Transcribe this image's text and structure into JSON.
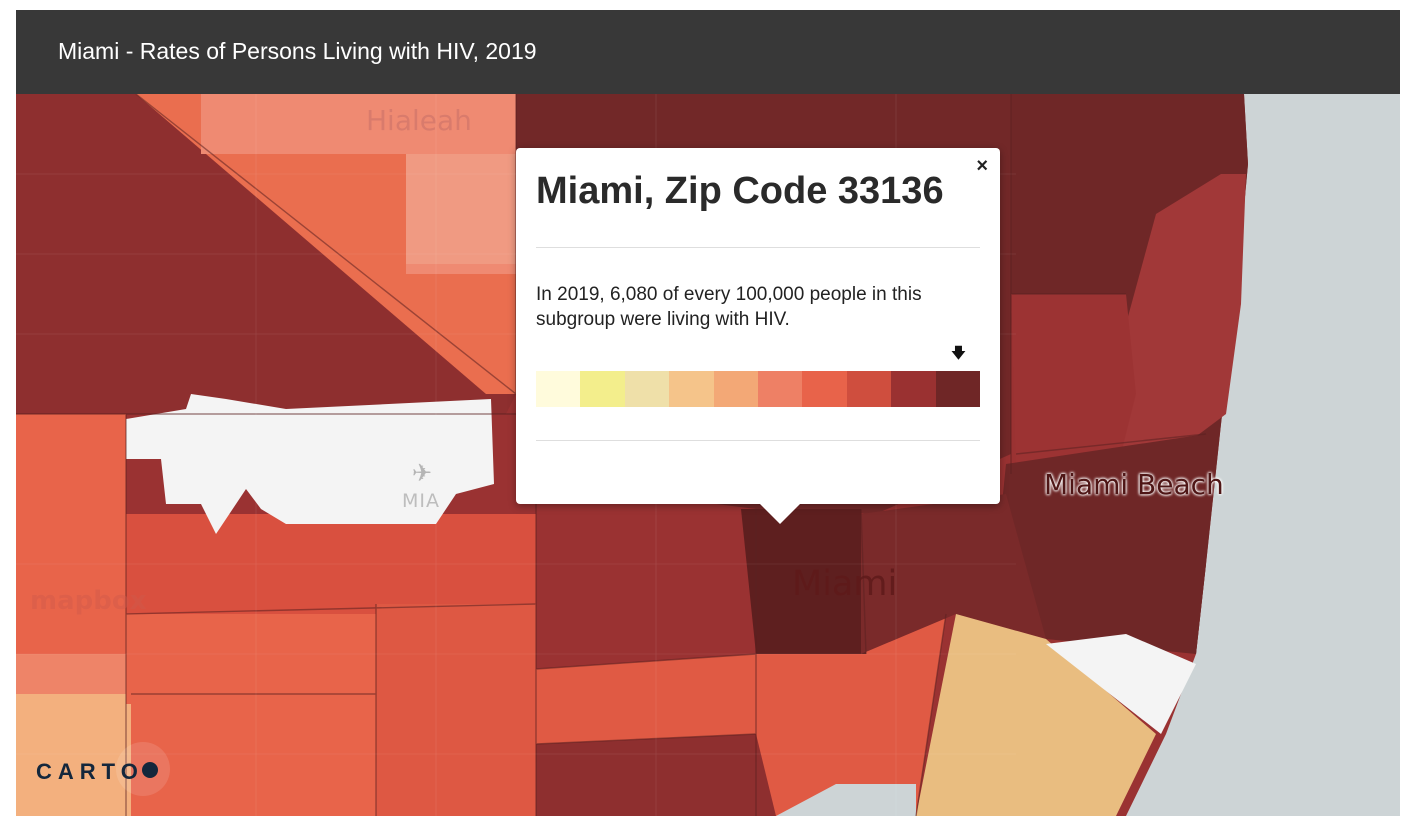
{
  "header": {
    "title": "Miami - Rates of Persons Living with HIV, 2019"
  },
  "map": {
    "places": {
      "hialeah": "Hialeah",
      "mia": "MIA",
      "miami": "Miami",
      "miami_beach": "Miami Beach"
    },
    "basemap_logo": "mapbox",
    "attribution": "CARTO",
    "airport_icon": "airplane-icon",
    "colors": {
      "water": "#cdd4d6",
      "no_data": "#f4f4f4"
    }
  },
  "popup": {
    "close_label": "×",
    "title": "Miami, Zip Code 33136",
    "text": "In 2019, 6,080 of every 100,000 people in this subgroup were living with HIV.",
    "marker_icon": "down-arrow-icon",
    "legend_colors": [
      "#fffbdc",
      "#f3ee8c",
      "#efe0a9",
      "#f5c48a",
      "#f3a876",
      "#ee8065",
      "#e8634a",
      "#cf4e3e",
      "#9a3131",
      "#6f2626"
    ],
    "selected_bin": 9
  }
}
